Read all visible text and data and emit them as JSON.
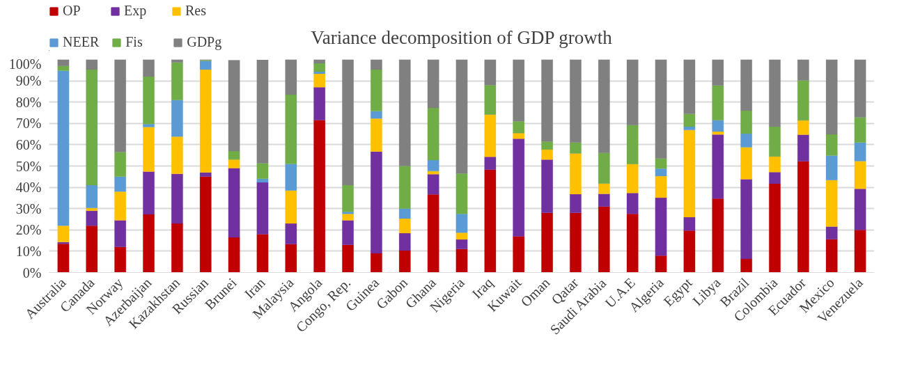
{
  "chart_data": {
    "type": "bar",
    "stacked": true,
    "title": "Variance decomposition of GDP growth",
    "categories": [
      "Australia",
      "Canada",
      "Norway",
      "Azerbaijan",
      "Kazakhstan",
      "Russian",
      "Brunei",
      "Iran",
      "Malaysia",
      "Angola",
      "Congo, Rep.",
      "Guinea",
      "Gabon",
      "Ghana",
      "Nigeria",
      "Iraq",
      "Kuwait",
      "Oman",
      "Qatar",
      "Saudi Arabia",
      "U.A.E",
      "Algeria",
      "Egypt",
      "Libya",
      "Brazil",
      "Colombia",
      "Ecuador",
      "Mexico",
      "Venezuela"
    ],
    "series": [
      {
        "name": "OP",
        "color": "#c00000",
        "values": [
          13.5,
          22,
          12,
          27.3,
          23,
          45,
          16.5,
          18,
          13.3,
          71.6,
          13,
          9,
          10.3,
          36.7,
          11,
          48.3,
          17,
          28,
          28,
          31,
          27.5,
          7.9,
          19.7,
          34.7,
          6.4,
          41.7,
          52.2,
          15.6,
          20
        ]
      },
      {
        "name": "Exp",
        "color": "#7030a0",
        "values": [
          0.8,
          7,
          12.5,
          20.1,
          23.3,
          2,
          32.5,
          24.3,
          9.7,
          15.4,
          11.5,
          47.8,
          8.2,
          9.5,
          4.5,
          6,
          45.8,
          25,
          8.8,
          5.9,
          9.8,
          27.2,
          6.3,
          30.1,
          37.4,
          5.4,
          12.5,
          6,
          19.3
        ]
      },
      {
        "name": "Res",
        "color": "#ffc000",
        "values": [
          7.7,
          1.3,
          13.5,
          20.9,
          17.5,
          48.3,
          4,
          null,
          15.5,
          6.3,
          3,
          15.5,
          6.8,
          1.4,
          3.2,
          19.9,
          2.7,
          4.8,
          19.2,
          4.9,
          13.7,
          10.2,
          40.9,
          1.4,
          15,
          7.4,
          6.8,
          21.8,
          13
        ]
      },
      {
        "name": "NEER",
        "color": "#5b9bd5",
        "values": [
          72.8,
          10.7,
          7,
          1.4,
          17.2,
          4,
          null,
          1.7,
          12.5,
          1,
          1,
          3.4,
          4.7,
          5.2,
          8.8,
          0,
          0,
          0,
          0,
          0,
          0,
          3.5,
          1.6,
          5.3,
          6.4,
          0,
          0,
          11.5,
          8.7
        ]
      },
      {
        "name": "Fis",
        "color": "#70ad47",
        "values": [
          2.2,
          54.3,
          11.5,
          22.3,
          17.6,
          0.4,
          4,
          7.3,
          32.5,
          3.9,
          12.5,
          19.6,
          20,
          24.5,
          19,
          13.8,
          5.5,
          3.7,
          5,
          14.3,
          18.2,
          4.7,
          6,
          16.3,
          10.8,
          14,
          18.7,
          10,
          11.9
        ]
      },
      {
        "name": "GDPg",
        "color": "#808080",
        "values": [
          3,
          4.7,
          43.5,
          8,
          1.4,
          0.3,
          42.7,
          48.5,
          16.5,
          1.8,
          59,
          4.7,
          50,
          22.7,
          53.5,
          12,
          29,
          38.5,
          39,
          43.9,
          30.8,
          46.5,
          25.5,
          12.2,
          24,
          31.5,
          9.8,
          35.1,
          27.1
        ]
      }
    ],
    "ylim": [
      0,
      100
    ],
    "yticks": [
      {
        "value": 0,
        "label": "0%"
      },
      {
        "value": 10,
        "label": "10%"
      },
      {
        "value": 20,
        "label": "20%"
      },
      {
        "value": 30,
        "label": "30%"
      },
      {
        "value": 40,
        "label": "40%"
      },
      {
        "value": 50,
        "label": "50%"
      },
      {
        "value": 60,
        "label": "60%"
      },
      {
        "value": 70,
        "label": "70%"
      },
      {
        "value": 80,
        "label": "80%"
      },
      {
        "value": 90,
        "label": "90%"
      },
      {
        "value": 100,
        "label": "100%"
      }
    ],
    "grid": "y",
    "legend": "top left"
  }
}
